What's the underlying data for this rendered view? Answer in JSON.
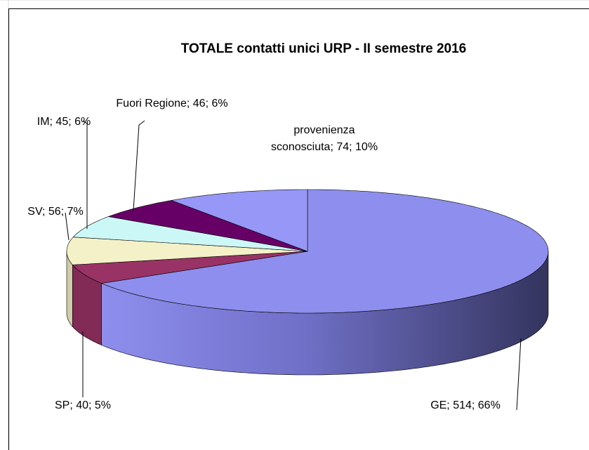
{
  "chart_data": {
    "type": "pie",
    "title": "TOTALE contatti unici URP - II semestre 2016",
    "categories": [
      "GE",
      "SP",
      "SV",
      "IM",
      "Fuori Regione",
      "provenienza sconosciuta"
    ],
    "values": [
      514,
      40,
      56,
      45,
      46,
      74
    ],
    "value_labels": [
      "GE; 514; 66%",
      "SP; 40; 5%",
      "SV; 56; 7%",
      "IM; 45; 6%",
      "Fuori Regione; 46; 6%",
      "provenienza sconosciuta; 74; 10%"
    ],
    "colors": [
      "#8e8eee",
      "#993366",
      "#f4f1c8",
      "#ccf7f7",
      "#660066",
      "#9797f7"
    ]
  }
}
